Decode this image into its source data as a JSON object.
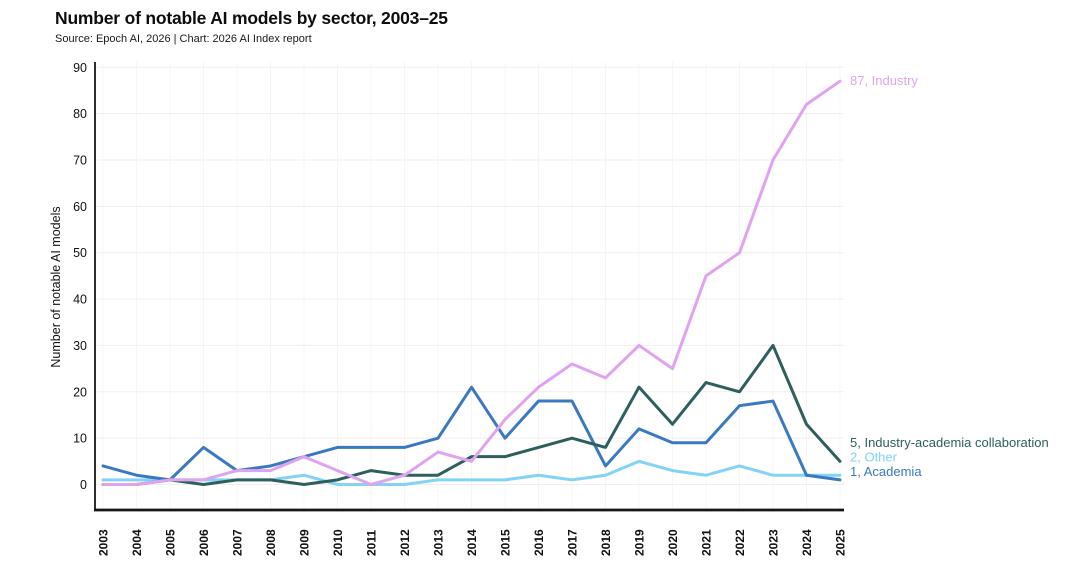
{
  "header": {
    "title": "Number of notable AI models by sector, 2003–25",
    "subtitle": "Source: Epoch AI, 2026 | Chart: 2026 AI Index report"
  },
  "chart_data": {
    "type": "line",
    "title": "Number of notable AI models by sector, 2003–25",
    "xlabel": "",
    "ylabel": "Number of notable AI models",
    "x": [
      2003,
      2004,
      2005,
      2006,
      2007,
      2008,
      2009,
      2010,
      2011,
      2012,
      2013,
      2014,
      2015,
      2016,
      2017,
      2018,
      2019,
      2020,
      2021,
      2022,
      2023,
      2024,
      2025
    ],
    "ylim": [
      0,
      90
    ],
    "ytick_step": 10,
    "grid": true,
    "legend_position": "line-end-labels-right",
    "series": [
      {
        "name": "Industry",
        "color": "#dfa3f0",
        "end_label": "87, Industry",
        "values": [
          0,
          0,
          1,
          1,
          3,
          3,
          6,
          3,
          0,
          2,
          7,
          5,
          14,
          21,
          26,
          23,
          30,
          25,
          45,
          50,
          70,
          82,
          87
        ]
      },
      {
        "name": "Industry-academia collaboration",
        "color": "#2e5f5c",
        "end_label": "5, Industry-academia collaboration",
        "values": [
          0,
          0,
          1,
          0,
          1,
          1,
          0,
          1,
          3,
          2,
          2,
          6,
          6,
          8,
          10,
          8,
          21,
          13,
          22,
          20,
          30,
          13,
          5
        ]
      },
      {
        "name": "Other",
        "color": "#82d3f5",
        "end_label": "2, Other",
        "values": [
          1,
          1,
          1,
          1,
          1,
          1,
          2,
          0,
          0,
          0,
          1,
          1,
          1,
          2,
          1,
          2,
          5,
          3,
          2,
          4,
          2,
          2,
          2
        ]
      },
      {
        "name": "Academia",
        "color": "#3a78c2",
        "end_label": "1, Academia",
        "values": [
          4,
          2,
          1,
          8,
          3,
          4,
          6,
          8,
          8,
          8,
          10,
          21,
          10,
          18,
          18,
          4,
          12,
          9,
          9,
          17,
          18,
          2,
          1
        ]
      }
    ]
  }
}
